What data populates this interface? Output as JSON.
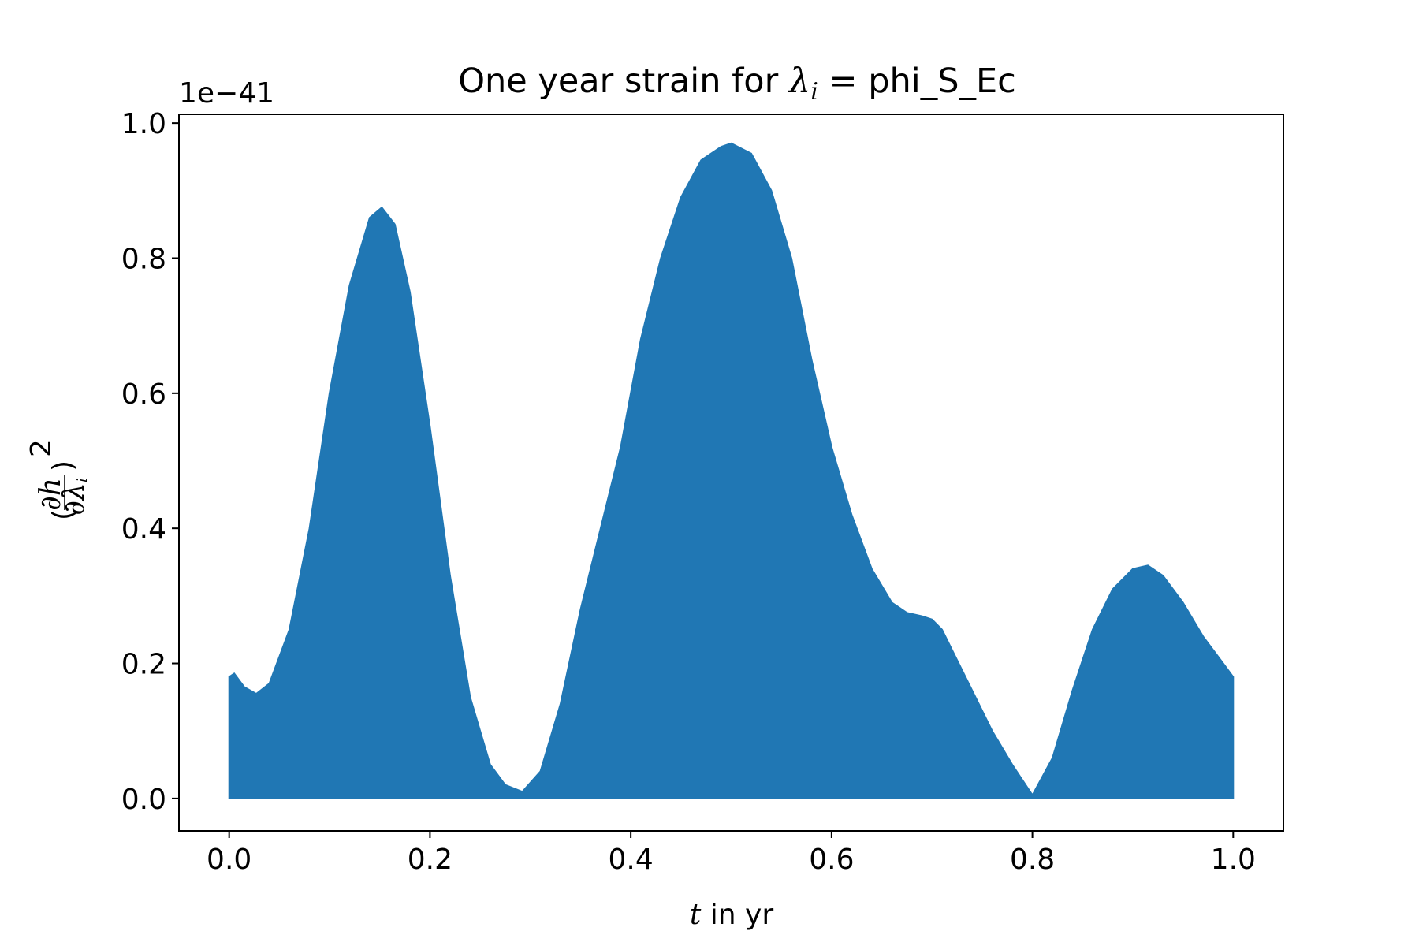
{
  "chart_data": {
    "type": "area",
    "title_prefix": "One year strain for ",
    "title_math": "λ",
    "title_math_sub": "i",
    "title_suffix": " = phi_S_Ec",
    "xlabel_math": "t",
    "xlabel_text": " in yr",
    "ylabel_parts": {
      "numerator": "∂h",
      "denominator": "∂λ",
      "denominator_sub": "i",
      "power": "2"
    },
    "y_offset_label": "1e−41",
    "xlim": [
      -0.05,
      1.05
    ],
    "ylim": [
      -0.048,
      1.013
    ],
    "x_ticks": [
      0.0,
      0.2,
      0.4,
      0.6,
      0.8,
      1.0
    ],
    "x_tick_labels": [
      "0.0",
      "0.2",
      "0.4",
      "0.6",
      "0.8",
      "1.0"
    ],
    "y_ticks": [
      0.0,
      0.2,
      0.4,
      0.6,
      0.8,
      1.0
    ],
    "y_tick_labels": [
      "0.0",
      "0.2",
      "0.4",
      "0.6",
      "0.8",
      "1.0"
    ],
    "grid": false,
    "series": [
      {
        "color": "#2077b4",
        "upper_envelope": {
          "x": [
            0.0,
            0.005,
            0.015,
            0.027,
            0.04,
            0.06,
            0.08,
            0.1,
            0.12,
            0.14,
            0.152,
            0.165,
            0.18,
            0.2,
            0.22,
            0.24,
            0.26,
            0.275,
            0.292,
            0.31,
            0.33,
            0.35,
            0.37,
            0.39,
            0.41,
            0.43,
            0.45,
            0.47,
            0.49,
            0.5,
            0.52,
            0.54,
            0.56,
            0.58,
            0.6,
            0.62,
            0.64,
            0.66,
            0.675,
            0.69,
            0.7,
            0.71,
            0.72,
            0.74,
            0.76,
            0.78,
            0.8,
            0.82,
            0.84,
            0.86,
            0.88,
            0.9,
            0.915,
            0.93,
            0.95,
            0.97,
            0.99,
            1.0
          ],
          "y": [
            0.18,
            0.185,
            0.165,
            0.155,
            0.17,
            0.25,
            0.4,
            0.6,
            0.76,
            0.86,
            0.875,
            0.85,
            0.75,
            0.55,
            0.33,
            0.15,
            0.05,
            0.02,
            0.01,
            0.04,
            0.14,
            0.28,
            0.4,
            0.52,
            0.68,
            0.8,
            0.89,
            0.945,
            0.965,
            0.97,
            0.955,
            0.9,
            0.8,
            0.65,
            0.52,
            0.42,
            0.34,
            0.29,
            0.275,
            0.27,
            0.265,
            0.25,
            0.22,
            0.16,
            0.1,
            0.05,
            0.005,
            0.06,
            0.16,
            0.25,
            0.31,
            0.34,
            0.345,
            0.33,
            0.29,
            0.24,
            0.2,
            0.18
          ]
        }
      }
    ]
  }
}
